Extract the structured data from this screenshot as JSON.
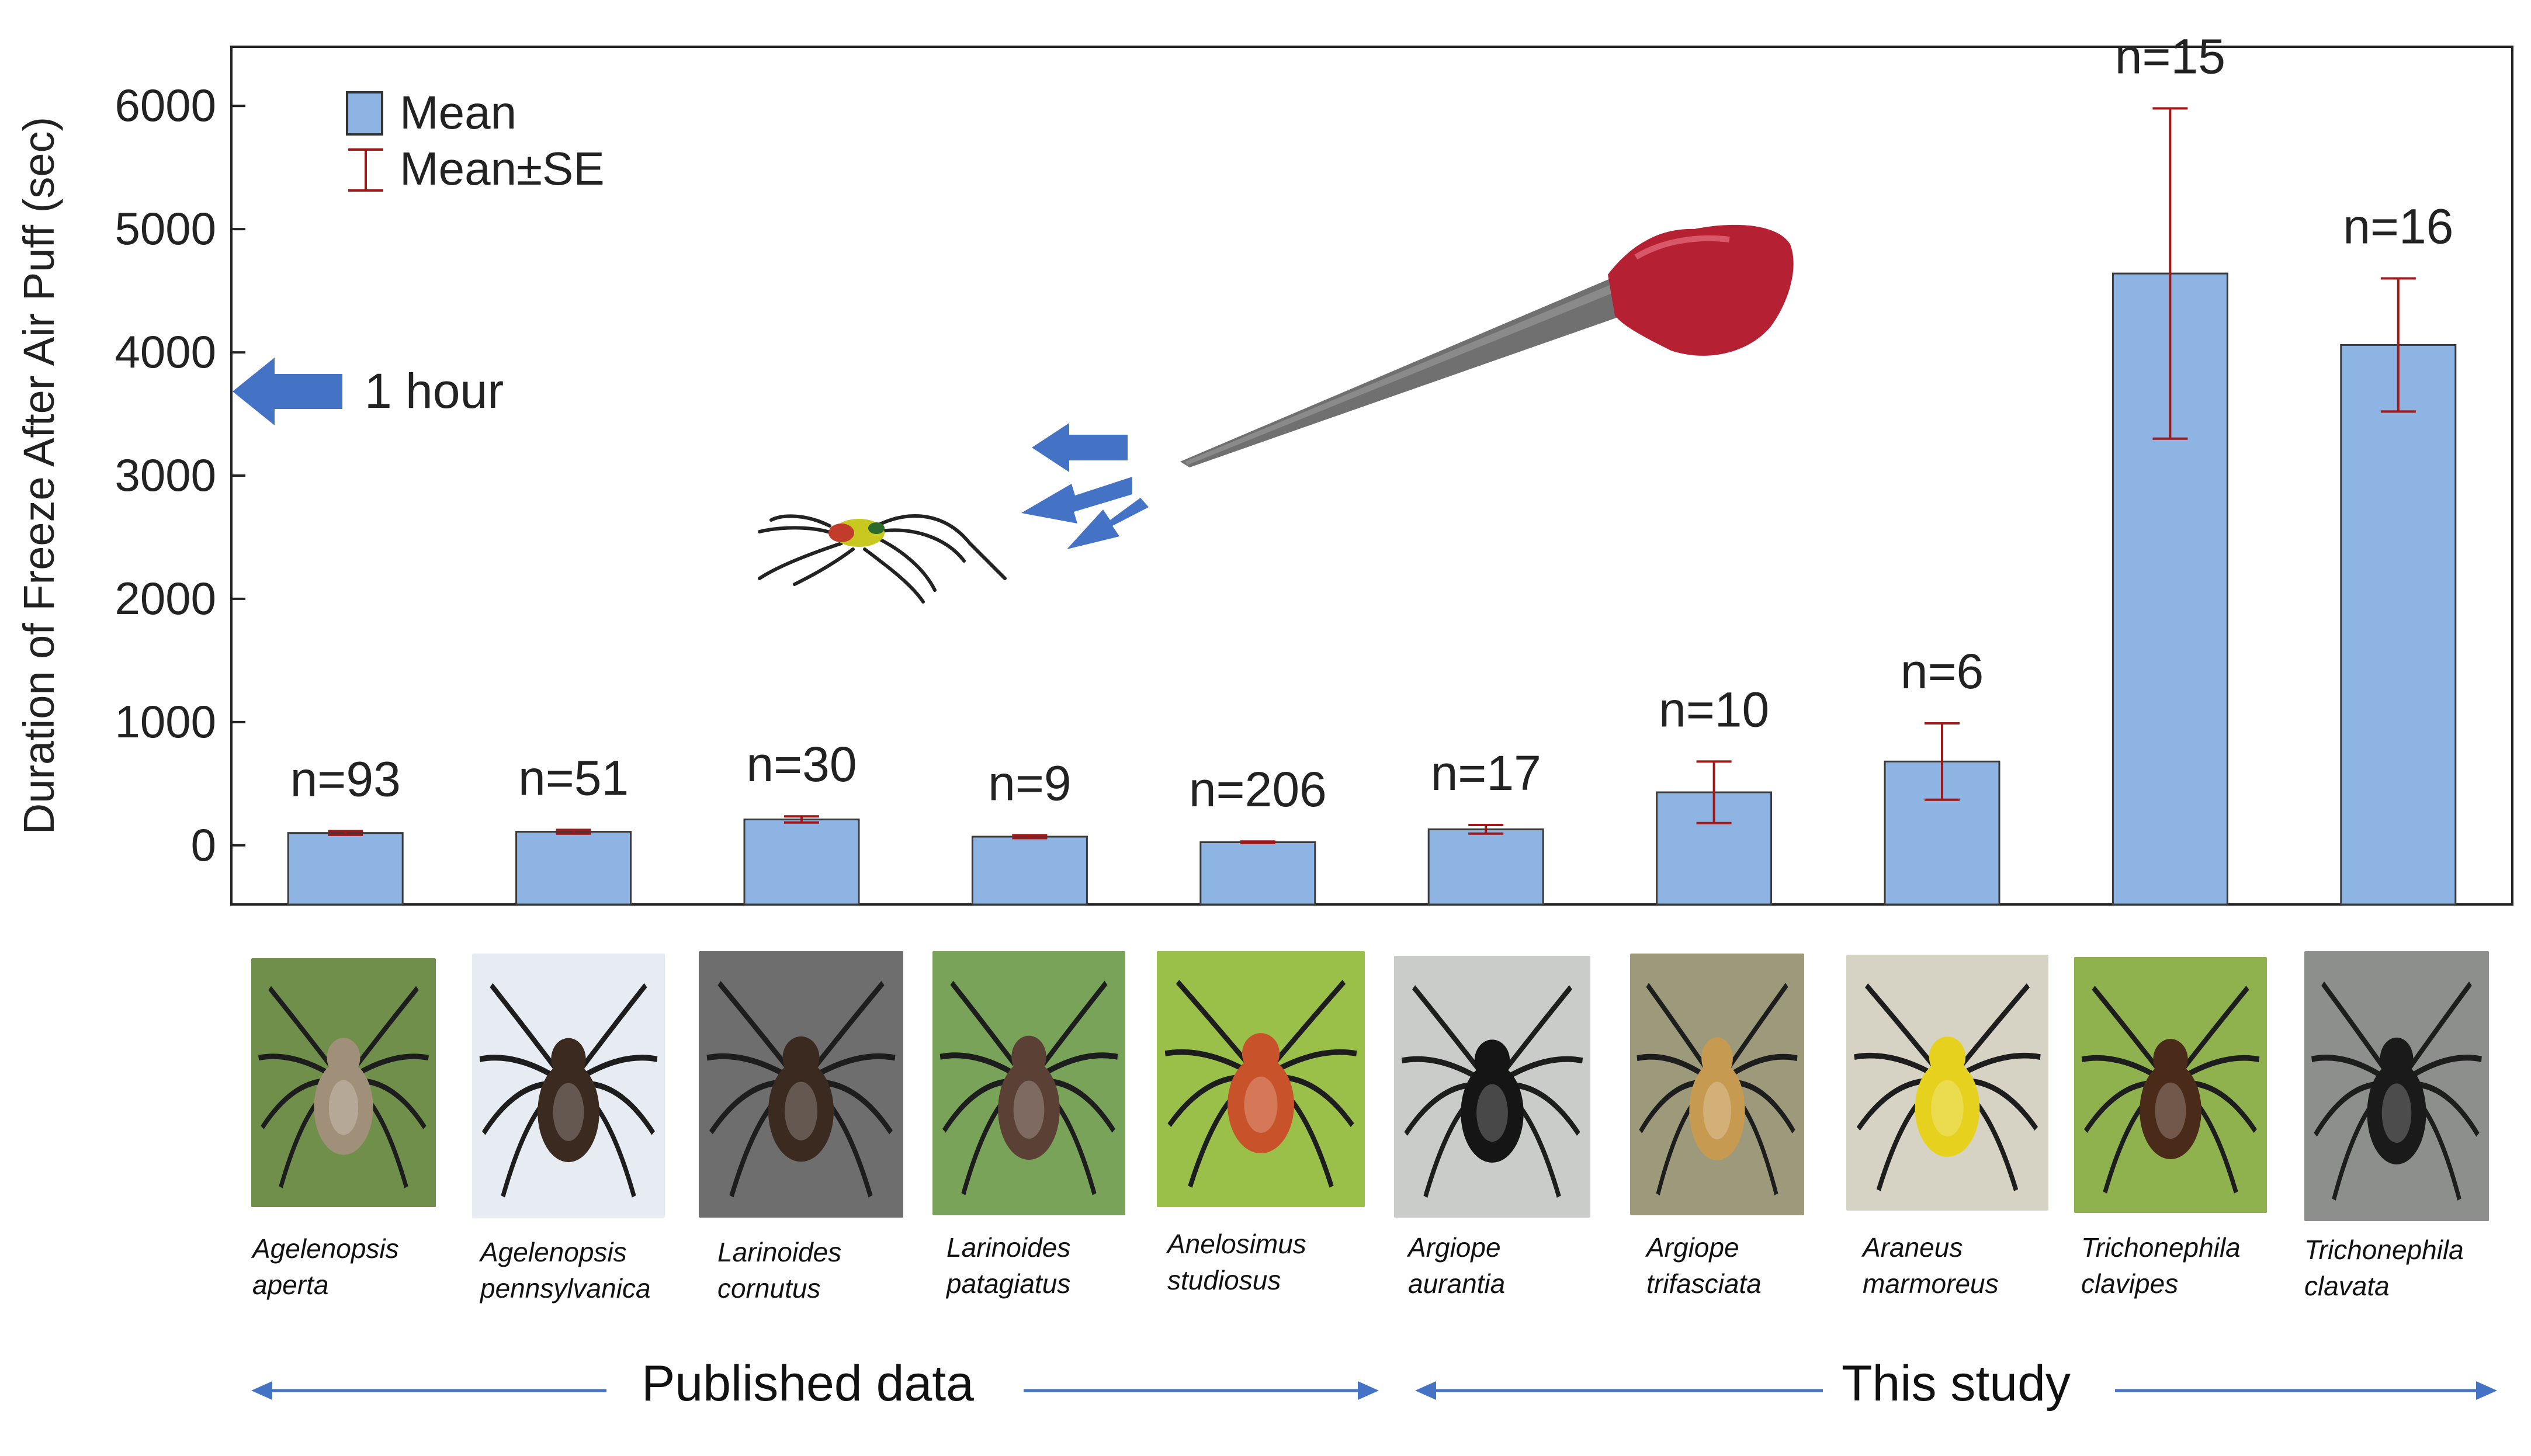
{
  "chart_data": {
    "type": "bar",
    "ylabel": "Duration of Freeze After Air Puff (sec)",
    "ylim": [
      -480,
      6480
    ],
    "yticks": [
      0,
      1000,
      2000,
      3000,
      4000,
      5000,
      6000
    ],
    "legend": {
      "placement": "top-left",
      "items": [
        {
          "label": "Mean",
          "kind": "bar"
        },
        {
          "label": "Mean±SE",
          "kind": "errorbar"
        }
      ]
    },
    "categories": [
      "Agelenopsis aperta",
      "Agelenopsis pennsylvanica",
      "Larinoides cornutus",
      "Larinoides patagiatus",
      "Anelosimus studiosus",
      "Argiope aurantia",
      "Argiope trifasciata",
      "Araneus marmoreus",
      "Trichonephila clavipes",
      "Trichonephila clavata"
    ],
    "values": [
      100,
      110,
      210,
      70,
      25,
      130,
      430,
      680,
      4640,
      4060
    ],
    "se": [
      15,
      15,
      25,
      12,
      6,
      35,
      250,
      310,
      1340,
      540
    ],
    "n_labels": [
      "n=93",
      "n=51",
      "n=30",
      "n=9",
      "n=206",
      "n=17",
      "n=10",
      "n=6",
      "n=15",
      "n=16"
    ],
    "annotations": [
      {
        "text": "1 hour",
        "y": 3600
      }
    ],
    "groups": [
      {
        "label": "Published data",
        "from": 0,
        "to": 4
      },
      {
        "label": "This study",
        "from": 5,
        "to": 9
      }
    ],
    "colors": {
      "bar": "#8DB4E2",
      "bar_edge": "#3a3a3a",
      "error": "#A01818",
      "arrow": "#4472C4"
    },
    "grid": false
  },
  "species": [
    {
      "genus": "Agelenopsis",
      "epithet": "aperta"
    },
    {
      "genus": "Agelenopsis",
      "epithet": "pennsylvanica"
    },
    {
      "genus": "Larinoides",
      "epithet": "cornutus"
    },
    {
      "genus": "Larinoides",
      "epithet": "patagiatus"
    },
    {
      "genus": "Anelosimus",
      "epithet": "studiosus"
    },
    {
      "genus": "Argiope",
      "epithet": "aurantia"
    },
    {
      "genus": "Argiope",
      "epithet": "trifasciata"
    },
    {
      "genus": "Araneus",
      "epithet": "marmoreus"
    },
    {
      "genus": "Trichonephila",
      "epithet": "clavipes"
    },
    {
      "genus": "Trichonephila",
      "epithet": "clavata"
    }
  ],
  "groups": {
    "published": "Published data",
    "this_study": "This study"
  },
  "photo_colors": [
    "#6f8f4a",
    "#e6ecf2",
    "#6e6e6e",
    "#7aa35a",
    "#9bc04a",
    "#c9ccc8",
    "#9c9a7a",
    "#d6d2c4",
    "#8fb24e",
    "#8c8f8c"
  ],
  "spider_colors": [
    "#a0907a",
    "#3a2a20",
    "#3a2a20",
    "#5a4035",
    "#c8522a",
    "#151515",
    "#c79a52",
    "#e6d21e",
    "#4a2a18",
    "#1a1a1a"
  ]
}
